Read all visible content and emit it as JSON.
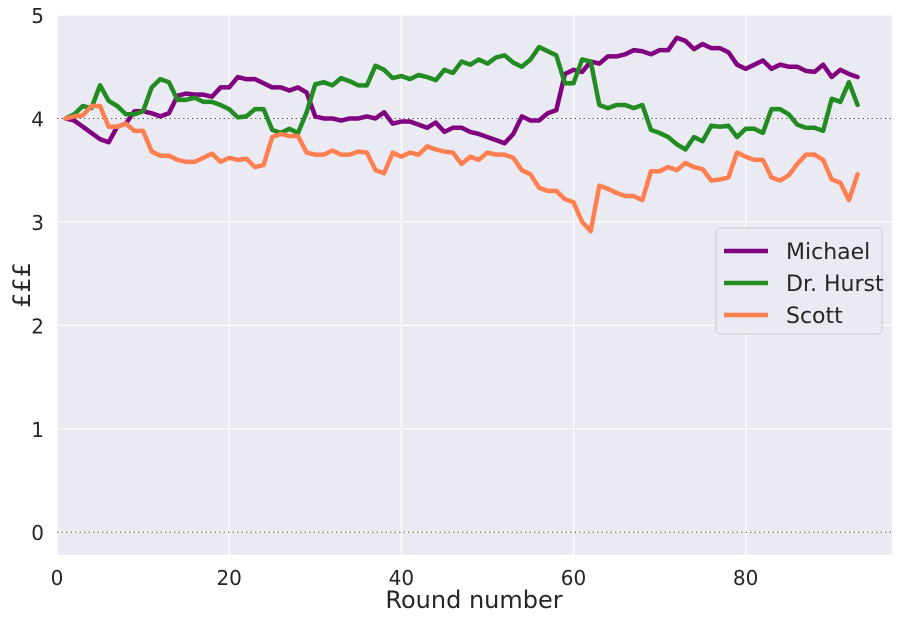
{
  "chart_data": {
    "type": "line",
    "title": "",
    "xlabel": "Round number",
    "ylabel": "£££",
    "xlim": [
      0,
      97
    ],
    "ylim": [
      -0.22,
      5.0
    ],
    "x_ticks": [
      0,
      20,
      40,
      60,
      80
    ],
    "y_ticks": [
      0,
      1,
      2,
      3,
      4,
      5
    ],
    "reference_lines": [
      0,
      4
    ],
    "grid": true,
    "legend_position": "right",
    "background_color": "#EAEAF2",
    "series": [
      {
        "name": "Michael",
        "color": "#800080",
        "values": [
          4.0,
          3.98,
          3.92,
          3.86,
          3.8,
          3.77,
          3.92,
          3.95,
          4.07,
          4.07,
          4.05,
          4.02,
          4.05,
          4.22,
          4.24,
          4.23,
          4.23,
          4.21,
          4.3,
          4.3,
          4.4,
          4.38,
          4.38,
          4.34,
          4.3,
          4.3,
          4.27,
          4.3,
          4.25,
          4.02,
          4.0,
          4.0,
          3.98,
          4.0,
          4.0,
          4.02,
          4.0,
          4.06,
          3.95,
          3.97,
          3.97,
          3.94,
          3.91,
          3.96,
          3.87,
          3.91,
          3.91,
          3.87,
          3.85,
          3.82,
          3.79,
          3.76,
          3.85,
          4.02,
          3.98,
          3.98,
          4.05,
          4.08,
          4.43,
          4.47,
          4.45,
          4.55,
          4.53,
          4.6,
          4.6,
          4.62,
          4.66,
          4.65,
          4.62,
          4.66,
          4.66,
          4.78,
          4.75,
          4.67,
          4.72,
          4.68,
          4.68,
          4.64,
          4.52,
          4.48,
          4.52,
          4.56,
          4.48,
          4.52,
          4.5,
          4.5,
          4.46,
          4.45,
          4.52,
          4.4,
          4.47,
          4.43,
          4.4
        ]
      },
      {
        "name": "Dr. Hurst",
        "color": "#228B22",
        "values": [
          4.0,
          4.04,
          4.12,
          4.1,
          4.32,
          4.17,
          4.12,
          4.04,
          4.04,
          4.07,
          4.3,
          4.38,
          4.35,
          4.18,
          4.18,
          4.2,
          4.16,
          4.16,
          4.13,
          4.09,
          4.01,
          4.02,
          4.09,
          4.09,
          3.89,
          3.86,
          3.9,
          3.86,
          4.06,
          4.33,
          4.35,
          4.32,
          4.39,
          4.36,
          4.32,
          4.32,
          4.51,
          4.47,
          4.39,
          4.41,
          4.38,
          4.42,
          4.4,
          4.37,
          4.47,
          4.44,
          4.55,
          4.52,
          4.57,
          4.53,
          4.59,
          4.61,
          4.54,
          4.5,
          4.57,
          4.69,
          4.65,
          4.61,
          4.34,
          4.34,
          4.57,
          4.55,
          4.13,
          4.1,
          4.13,
          4.13,
          4.1,
          4.13,
          3.89,
          3.86,
          3.82,
          3.75,
          3.7,
          3.82,
          3.78,
          3.93,
          3.92,
          3.93,
          3.82,
          3.9,
          3.9,
          3.86,
          4.09,
          4.09,
          4.04,
          3.94,
          3.91,
          3.91,
          3.88,
          4.19,
          4.16,
          4.35,
          4.13
        ]
      },
      {
        "name": "Scott",
        "color": "#FF7F50",
        "values": [
          4.0,
          4.02,
          4.03,
          4.12,
          4.12,
          3.92,
          3.92,
          3.95,
          3.88,
          3.88,
          3.68,
          3.64,
          3.64,
          3.6,
          3.58,
          3.58,
          3.62,
          3.66,
          3.58,
          3.62,
          3.6,
          3.61,
          3.53,
          3.55,
          3.82,
          3.85,
          3.83,
          3.83,
          3.67,
          3.65,
          3.65,
          3.69,
          3.65,
          3.65,
          3.68,
          3.67,
          3.5,
          3.47,
          3.67,
          3.63,
          3.67,
          3.65,
          3.73,
          3.7,
          3.68,
          3.67,
          3.56,
          3.63,
          3.6,
          3.67,
          3.65,
          3.65,
          3.62,
          3.5,
          3.46,
          3.33,
          3.3,
          3.3,
          3.22,
          3.19,
          3.0,
          2.91,
          3.35,
          3.32,
          3.28,
          3.25,
          3.25,
          3.21,
          3.49,
          3.49,
          3.53,
          3.5,
          3.57,
          3.53,
          3.51,
          3.4,
          3.41,
          3.43,
          3.67,
          3.63,
          3.6,
          3.6,
          3.43,
          3.4,
          3.45,
          3.56,
          3.65,
          3.65,
          3.6,
          3.41,
          3.38,
          3.21,
          3.46
        ]
      }
    ]
  }
}
